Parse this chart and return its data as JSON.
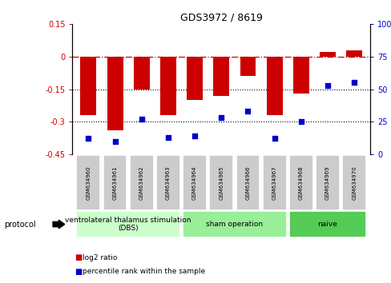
{
  "title": "GDS3972 / 8619",
  "samples": [
    "GSM634960",
    "GSM634961",
    "GSM634962",
    "GSM634963",
    "GSM634964",
    "GSM634965",
    "GSM634966",
    "GSM634967",
    "GSM634968",
    "GSM634969",
    "GSM634970"
  ],
  "log2_ratio": [
    -0.27,
    -0.34,
    -0.15,
    -0.27,
    -0.2,
    -0.18,
    -0.09,
    -0.27,
    -0.17,
    0.02,
    0.03
  ],
  "percentile_rank": [
    12,
    10,
    27,
    13,
    14,
    28,
    33,
    12,
    25,
    53,
    55
  ],
  "bar_color": "#cc0000",
  "dot_color": "#0000cc",
  "left_ylim": [
    -0.45,
    0.15
  ],
  "right_ylim": [
    0,
    100
  ],
  "left_yticks": [
    0.15,
    0,
    -0.15,
    -0.3,
    -0.45
  ],
  "right_yticks": [
    100,
    75,
    50,
    25,
    0
  ],
  "dotted_lines": [
    -0.15,
    -0.3
  ],
  "groups": [
    {
      "label": "ventrolateral thalamus stimulation\n(DBS)",
      "start": 0,
      "end": 3,
      "color": "#ccffcc"
    },
    {
      "label": "sham operation",
      "start": 4,
      "end": 7,
      "color": "#99ee99"
    },
    {
      "label": "naive",
      "start": 8,
      "end": 10,
      "color": "#55cc55"
    }
  ],
  "group_color_light": "#ccffcc",
  "group_color_mid": "#99ee99",
  "group_color_dark": "#55cc55",
  "legend_items": [
    {
      "label": "log2 ratio",
      "color": "#cc0000"
    },
    {
      "label": "percentile rank within the sample",
      "color": "#0000cc"
    }
  ],
  "protocol_label": "protocol",
  "bar_width": 0.6,
  "xlim": [
    -0.6,
    10.6
  ]
}
